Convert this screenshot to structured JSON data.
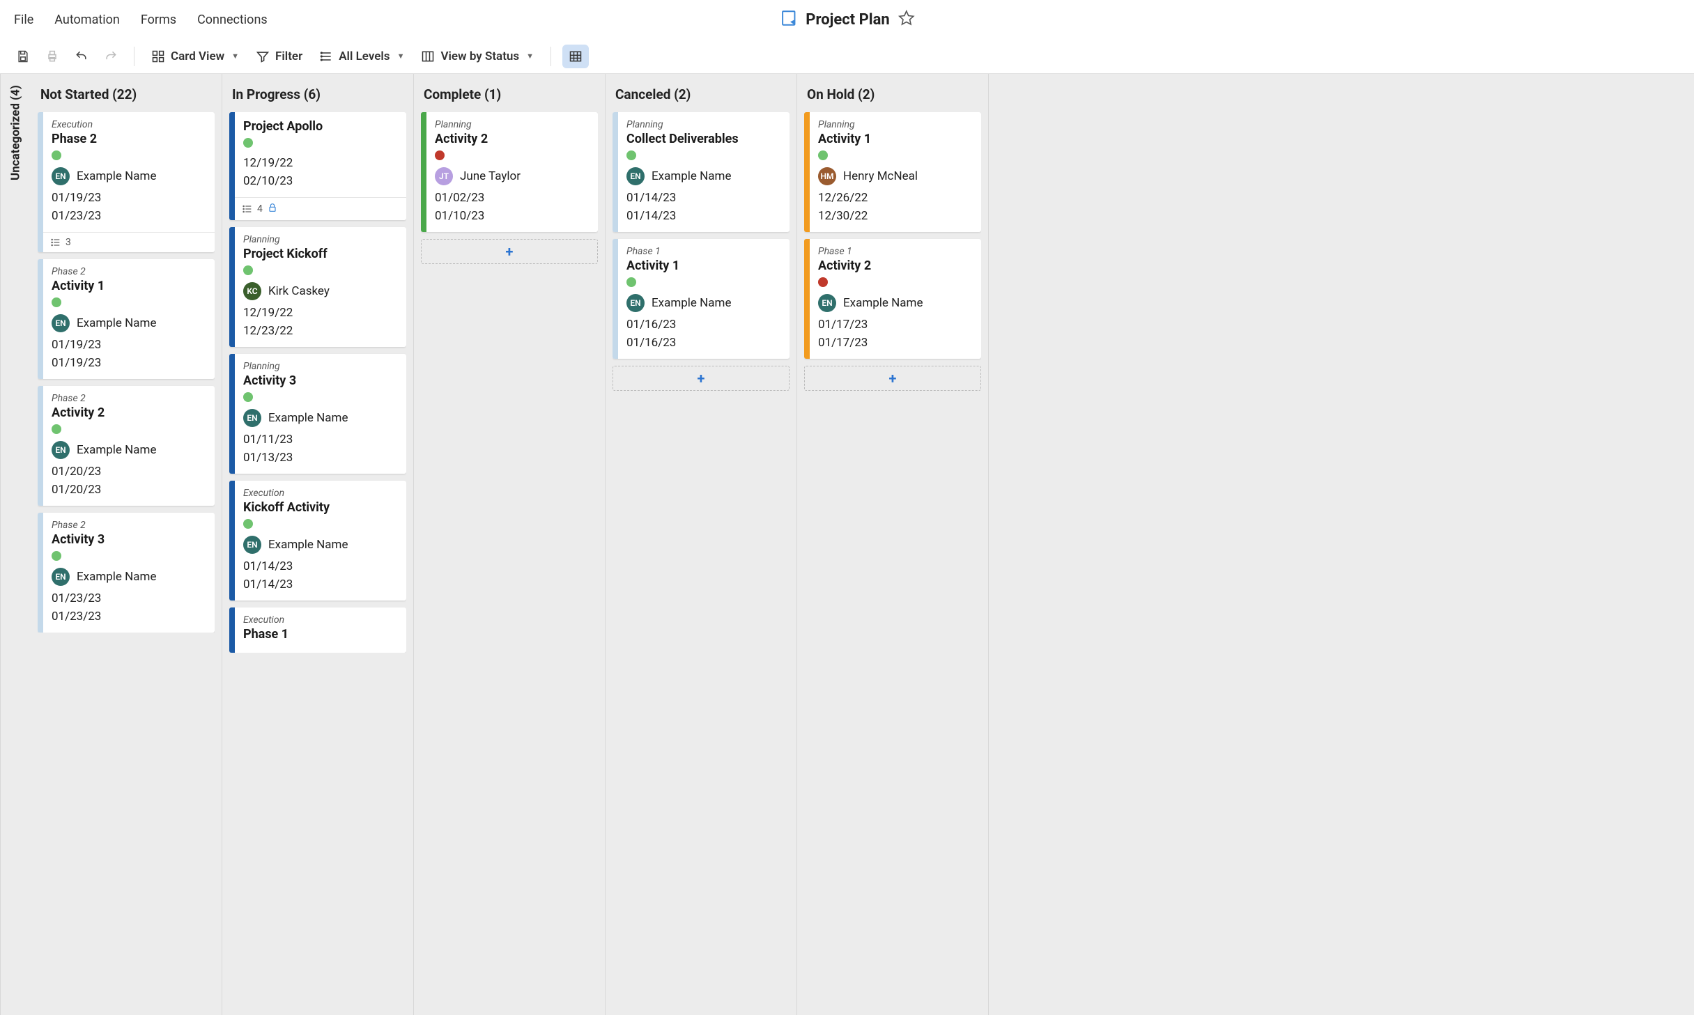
{
  "menu": {
    "items": [
      "File",
      "Automation",
      "Forms",
      "Connections"
    ],
    "title": "Project Plan"
  },
  "toolbar": {
    "card_view": "Card View",
    "filter": "Filter",
    "all_levels": "All Levels",
    "view_by_status": "View by Status"
  },
  "sidebar": {
    "label": "Uncategorized (4)"
  },
  "colors": {
    "stripe_lightblue": "#c4d9ea",
    "stripe_darkblue": "#1b5aa6",
    "stripe_green": "#4aa84a",
    "stripe_orange": "#f29b1f",
    "dot_green": "#6fc36f",
    "dot_red": "#c0392b",
    "avatar_teal": "#2f6f6b",
    "avatar_darkgreen": "#3a5f2c",
    "avatar_lilac": "#b79fe0",
    "avatar_brown": "#9a5b2f"
  },
  "columns": [
    {
      "title": "Not Started (22)",
      "cards": [
        {
          "category": "Execution",
          "title": "Phase 2",
          "stripe": "#c4d9ea",
          "dot": "#6fc36f",
          "avatar_initials": "EN",
          "avatar_color": "#2f6f6b",
          "assignee": "Example Name",
          "date1": "01/19/23",
          "date2": "01/23/23",
          "footer_count": "3",
          "footer_lock": false
        },
        {
          "category": "Phase 2",
          "title": "Activity 1",
          "stripe": "#c4d9ea",
          "dot": "#6fc36f",
          "avatar_initials": "EN",
          "avatar_color": "#2f6f6b",
          "assignee": "Example Name",
          "date1": "01/19/23",
          "date2": "01/19/23"
        },
        {
          "category": "Phase 2",
          "title": "Activity 2",
          "stripe": "#c4d9ea",
          "dot": "#6fc36f",
          "avatar_initials": "EN",
          "avatar_color": "#2f6f6b",
          "assignee": "Example Name",
          "date1": "01/20/23",
          "date2": "01/20/23"
        },
        {
          "category": "Phase 2",
          "title": "Activity 3",
          "stripe": "#c4d9ea",
          "dot": "#6fc36f",
          "avatar_initials": "EN",
          "avatar_color": "#2f6f6b",
          "assignee": "Example Name",
          "date1": "01/23/23",
          "date2": "01/23/23"
        }
      ]
    },
    {
      "title": "In Progress (6)",
      "cards": [
        {
          "category": "",
          "title": "Project Apollo",
          "stripe": "#1b5aa6",
          "dot": "#6fc36f",
          "avatar_initials": "",
          "avatar_color": "",
          "assignee": "",
          "date1": "12/19/22",
          "date2": "02/10/23",
          "footer_count": "4",
          "footer_lock": true
        },
        {
          "category": "Planning",
          "title": "Project Kickoff",
          "stripe": "#1b5aa6",
          "dot": "#6fc36f",
          "avatar_initials": "KC",
          "avatar_color": "#3a5f2c",
          "assignee": "Kirk Caskey",
          "date1": "12/19/22",
          "date2": "12/23/22"
        },
        {
          "category": "Planning",
          "title": "Activity 3",
          "stripe": "#1b5aa6",
          "dot": "#6fc36f",
          "avatar_initials": "EN",
          "avatar_color": "#2f6f6b",
          "assignee": "Example Name",
          "date1": "01/11/23",
          "date2": "01/13/23"
        },
        {
          "category": "Execution",
          "title": "Kickoff Activity",
          "stripe": "#1b5aa6",
          "dot": "#6fc36f",
          "avatar_initials": "EN",
          "avatar_color": "#2f6f6b",
          "assignee": "Example Name",
          "date1": "01/14/23",
          "date2": "01/14/23"
        },
        {
          "category": "Execution",
          "title": "Phase 1",
          "stripe": "#1b5aa6",
          "dot": "#6fc36f",
          "partial": true
        }
      ]
    },
    {
      "title": "Complete (1)",
      "cards": [
        {
          "category": "Planning",
          "title": "Activity 2",
          "stripe": "#4aa84a",
          "dot": "#c0392b",
          "avatar_initials": "JT",
          "avatar_color": "#b79fe0",
          "assignee": "June Taylor",
          "date1": "01/02/23",
          "date2": "01/10/23"
        }
      ],
      "show_add": true
    },
    {
      "title": "Canceled (2)",
      "cards": [
        {
          "category": "Planning",
          "title": "Collect Deliverables",
          "stripe": "#c4d9ea",
          "dot": "#6fc36f",
          "avatar_initials": "EN",
          "avatar_color": "#2f6f6b",
          "assignee": "Example Name",
          "date1": "01/14/23",
          "date2": "01/14/23"
        },
        {
          "category": "Phase 1",
          "title": "Activity 1",
          "stripe": "#c4d9ea",
          "dot": "#6fc36f",
          "avatar_initials": "EN",
          "avatar_color": "#2f6f6b",
          "assignee": "Example Name",
          "date1": "01/16/23",
          "date2": "01/16/23"
        }
      ],
      "show_add": true
    },
    {
      "title": "On Hold (2)",
      "cards": [
        {
          "category": "Planning",
          "title": "Activity 1",
          "stripe": "#f29b1f",
          "dot": "#6fc36f",
          "avatar_initials": "HM",
          "avatar_color": "#9a5b2f",
          "assignee": "Henry McNeal",
          "date1": "12/26/22",
          "date2": "12/30/22"
        },
        {
          "category": "Phase 1",
          "title": "Activity 2",
          "stripe": "#f29b1f",
          "dot": "#c0392b",
          "avatar_initials": "EN",
          "avatar_color": "#2f6f6b",
          "assignee": "Example Name",
          "date1": "01/17/23",
          "date2": "01/17/23"
        }
      ],
      "show_add": true
    }
  ]
}
